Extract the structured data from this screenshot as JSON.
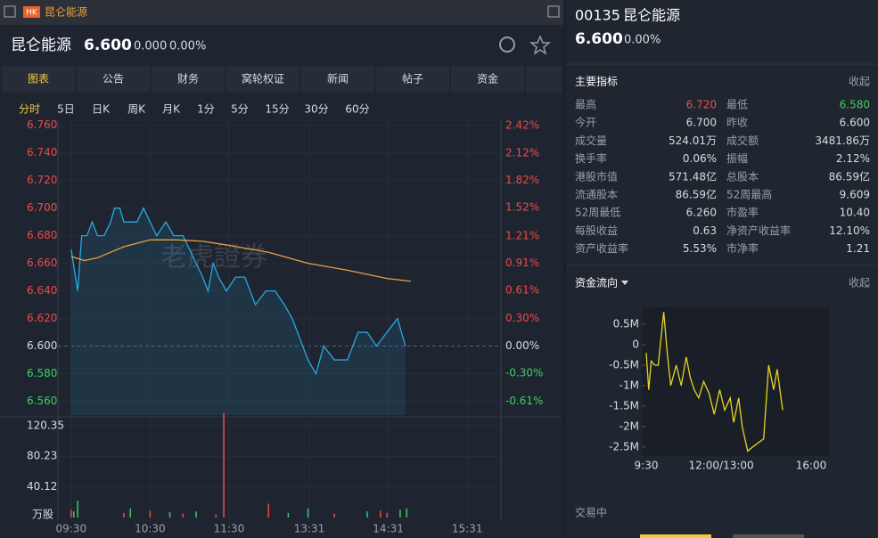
{
  "top_tab": {
    "badge": "HK",
    "title": "昆仑能源"
  },
  "quote_header": {
    "name": "昆仑能源",
    "price": "6.600",
    "change": "0.000",
    "change_pct": "0.00%"
  },
  "tabs": [
    "图表",
    "公告",
    "财务",
    "窝轮权证",
    "新闻",
    "帖子",
    "资金"
  ],
  "periods": [
    "分时",
    "5日",
    "日K",
    "周K",
    "月K",
    "1分",
    "5分",
    "15分",
    "30分",
    "60分"
  ],
  "intraday_chart": {
    "type": "line",
    "watermark": "老虎證券",
    "xlim": [
      -8,
      330
    ],
    "ylim": [
      6.55,
      6.765
    ],
    "y2lim": [
      -0.76,
      2.5
    ],
    "yticks": [
      {
        "value": 6.76,
        "label": "6.760"
      },
      {
        "value": 6.74,
        "label": "6.740"
      },
      {
        "value": 6.72,
        "label": "6.720"
      },
      {
        "value": 6.7,
        "label": "6.700"
      },
      {
        "value": 6.68,
        "label": "6.680"
      },
      {
        "value": 6.66,
        "label": "6.660"
      },
      {
        "value": 6.64,
        "label": "6.640"
      },
      {
        "value": 6.62,
        "label": "6.620"
      },
      {
        "value": 6.6,
        "label": "6.600"
      },
      {
        "value": 6.58,
        "label": "6.580"
      },
      {
        "value": 6.56,
        "label": "6.560"
      }
    ],
    "y2ticks": [
      {
        "value": 2.42,
        "label": "2.42%"
      },
      {
        "value": 2.12,
        "label": "2.12%"
      },
      {
        "value": 1.82,
        "label": "1.82%"
      },
      {
        "value": 1.52,
        "label": "1.52%"
      },
      {
        "value": 1.21,
        "label": "1.21%"
      },
      {
        "value": 0.91,
        "label": "0.91%"
      },
      {
        "value": 0.61,
        "label": "0.61%"
      },
      {
        "value": 0.3,
        "label": "0.30%"
      },
      {
        "value": 0,
        "label": "0.00%"
      },
      {
        "value": -0.3,
        "label": "-0.30%"
      },
      {
        "value": -0.61,
        "label": "-0.61%"
      }
    ],
    "series": [
      {
        "color": "#29a8e0",
        "x": [
          0,
          5,
          8,
          12,
          16,
          20,
          25,
          30,
          33,
          37,
          40,
          45,
          50,
          55,
          60,
          65,
          72,
          78,
          85,
          90,
          95,
          100,
          104,
          108,
          112,
          118,
          125,
          132,
          140,
          148,
          155,
          162,
          168,
          172,
          176,
          180,
          186,
          192,
          200,
          210,
          218,
          225,
          232,
          240,
          248,
          254
        ],
        "values": [
          6.67,
          6.64,
          6.68,
          6.68,
          6.69,
          6.68,
          6.68,
          6.69,
          6.7,
          6.7,
          6.69,
          6.69,
          6.69,
          6.7,
          6.69,
          6.68,
          6.69,
          6.68,
          6.68,
          6.67,
          6.66,
          6.65,
          6.64,
          6.66,
          6.65,
          6.64,
          6.65,
          6.65,
          6.63,
          6.64,
          6.64,
          6.63,
          6.62,
          6.61,
          6.6,
          6.59,
          6.58,
          6.6,
          6.59,
          6.59,
          6.61,
          6.61,
          6.6,
          6.61,
          6.62,
          6.6
        ]
      },
      {
        "color": "#e8a040",
        "x": [
          0,
          10,
          20,
          40,
          60,
          80,
          100,
          120,
          150,
          180,
          210,
          240,
          258
        ],
        "values": [
          6.665,
          6.662,
          6.664,
          6.672,
          6.677,
          6.677,
          6.676,
          6.673,
          6.668,
          6.66,
          6.655,
          6.649,
          6.647
        ]
      }
    ]
  },
  "volume_chart": {
    "type": "bar",
    "unit": "万股",
    "xlim": [
      -8,
      330
    ],
    "ylim": [
      0,
      140
    ],
    "yticks": [
      {
        "value": 120.35,
        "label": "120.35"
      },
      {
        "value": 80.23,
        "label": "80.23"
      },
      {
        "value": 40.12,
        "label": "40.12"
      }
    ],
    "xticks": [
      {
        "value": 0,
        "label": "09:30"
      },
      {
        "value": 60,
        "label": "10:30"
      },
      {
        "value": 120,
        "label": "11:30"
      },
      {
        "value": 181,
        "label": "13:31"
      },
      {
        "value": 241,
        "label": "14:31"
      },
      {
        "value": 301,
        "label": "15:31"
      }
    ],
    "x": [
      0,
      2,
      5,
      40,
      45,
      60,
      75,
      85,
      95,
      110,
      116,
      150,
      165,
      180,
      200,
      225,
      235,
      240,
      250,
      255
    ],
    "values": [
      10,
      8,
      22,
      6,
      12,
      9,
      7,
      5,
      8,
      4,
      137,
      18,
      6,
      12,
      5,
      8,
      9,
      6,
      10,
      12
    ],
    "colors": [
      "#e84545",
      "#3fbf5f",
      "#3fbf5f",
      "#e84545",
      "#3fbf5f",
      "#e84545",
      "#3fbf5f",
      "#e84545",
      "#3fbf5f",
      "#e84545",
      "#e84545",
      "#e84545",
      "#3fbf5f",
      "#3fbf5f",
      "#e84545",
      "#3fbf5f",
      "#e84545",
      "#e84545",
      "#3fbf5f",
      "#3fbf5f"
    ]
  },
  "side": {
    "code": "00135",
    "name": "昆仑能源",
    "price": "6.600",
    "change_pct": "0.00%",
    "indicators_title": "主要指标",
    "collapse": "收起",
    "indicators": [
      [
        "最高",
        "6.720",
        "最低",
        "6.580"
      ],
      [
        "今开",
        "6.700",
        "昨收",
        "6.600"
      ],
      [
        "成交量",
        "524.01万",
        "成交额",
        "3481.86万"
      ],
      [
        "换手率",
        "0.06%",
        "振幅",
        "2.12%"
      ],
      [
        "港股市值",
        "571.48亿",
        "总股本",
        "86.59亿"
      ],
      [
        "流通股本",
        "86.59亿",
        "52周最高",
        "9.609"
      ],
      [
        "52周最低",
        "6.260",
        "市盈率",
        "10.40"
      ],
      [
        "每股收益",
        "0.63",
        "净资产收益率",
        "12.10%"
      ],
      [
        "资产收益率",
        "5.53%",
        "市净率",
        "1.21"
      ]
    ],
    "flow_title": "资金流向",
    "flow_collapse": "收起",
    "status": "交易中"
  },
  "flow_chart": {
    "type": "line",
    "color": "#e6d422",
    "xlim": [
      0,
      330
    ],
    "ylim": [
      -2.7,
      0.85
    ],
    "yticks": [
      {
        "value": 0.5,
        "label": "0.5M"
      },
      0,
      {
        "value": -0.5,
        "label": "-0.5M"
      },
      {
        "value": -1,
        "label": "-1M"
      },
      {
        "value": -1.5,
        "label": "-1.5M"
      },
      {
        "value": -2,
        "label": "-2M"
      },
      {
        "value": -2.5,
        "label": "-2.5M"
      }
    ],
    "xticks": [
      {
        "value": 0,
        "label": "9:30"
      },
      {
        "value": 150,
        "label": "12:00/13:00"
      },
      {
        "value": 330,
        "label": "16:00"
      }
    ],
    "x": [
      0,
      5,
      10,
      17,
      24,
      35,
      42,
      49,
      60,
      70,
      80,
      88,
      96,
      105,
      115,
      126,
      136,
      147,
      157,
      168,
      175,
      185,
      192,
      203,
      213,
      224,
      235,
      245,
      255,
      262,
      273
    ],
    "values": [
      -0.2,
      -1.1,
      -0.4,
      -0.5,
      -0.5,
      0.8,
      -0.2,
      -1.0,
      -0.5,
      -1.0,
      -0.3,
      -0.8,
      -1.1,
      -1.3,
      -0.9,
      -1.2,
      -1.7,
      -1.1,
      -1.6,
      -1.3,
      -1.9,
      -1.3,
      -2.0,
      -2.6,
      -2.5,
      -2.4,
      -2.3,
      -0.5,
      -1.1,
      -0.6,
      -1.6
    ]
  }
}
